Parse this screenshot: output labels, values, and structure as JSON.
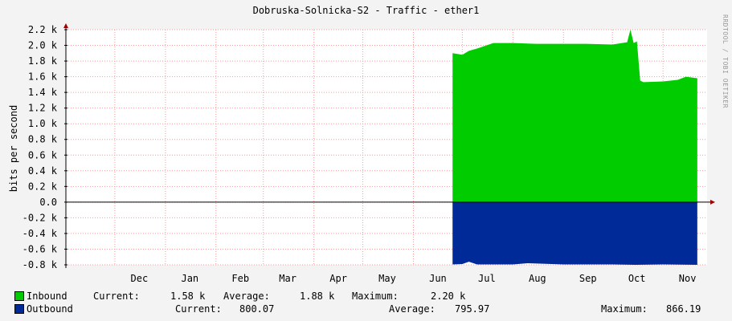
{
  "title": "Dobruska-Solnicka-S2 - Traffic - ether1",
  "watermark": "RRDTOOL / TOBI OETIKER",
  "colors": {
    "inbound": "#00cc00",
    "outbound": "#002a97",
    "grid": "#ff9999",
    "background": "#f3f3f3"
  },
  "chart_data": {
    "type": "area",
    "title": "Dobruska-Solnicka-S2 - Traffic - ether1",
    "ylabel": "bits per second",
    "ylim": [
      -0.8,
      2.2
    ],
    "y_unit": "k",
    "y_ticks": [
      "2.2 k",
      "2.0 k",
      "1.8 k",
      "1.6 k",
      "1.4 k",
      "1.2 k",
      "1.0 k",
      "0.8 k",
      "0.6 k",
      "0.4 k",
      "0.2 k",
      "0.0",
      "-0.2 k",
      "-0.4 k",
      "-0.6 k",
      "-0.8 k"
    ],
    "x_ticks": [
      "Dec",
      "Jan",
      "Feb",
      "Mar",
      "Apr",
      "May",
      "Jun",
      "Jul",
      "Aug",
      "Sep",
      "Oct",
      "Nov"
    ],
    "grid": true,
    "series": [
      {
        "name": "Inbound",
        "color": "#00cc00",
        "x": [
          "Jun 25",
          "Jul 1",
          "Jul 5",
          "Jul 10",
          "Jul 20",
          "Aug 1",
          "Aug 15",
          "Sep 1",
          "Sep 15",
          "Oct 1",
          "Oct 10",
          "Oct 12",
          "Oct 14",
          "Oct 16",
          "Oct 18",
          "Oct 20",
          "Nov 1",
          "Nov 10",
          "Nov 15",
          "Nov 22"
        ],
        "values": [
          1.9,
          1.88,
          1.93,
          1.96,
          2.03,
          2.03,
          2.02,
          2.02,
          2.02,
          2.01,
          2.04,
          2.2,
          2.03,
          2.05,
          1.55,
          1.53,
          1.54,
          1.56,
          1.6,
          1.58
        ],
        "legend": {
          "current": "1.58 k",
          "average": "1.88 k",
          "maximum": "2.20 k"
        }
      },
      {
        "name": "Outbound",
        "color": "#002a97",
        "x": [
          "Jun 25",
          "Jul 1",
          "Jul 5",
          "Jul 10",
          "Aug 1",
          "Aug 10",
          "Sep 1",
          "Oct 1",
          "Oct 15",
          "Nov 1",
          "Nov 22"
        ],
        "values": [
          -0.795,
          -0.79,
          -0.76,
          -0.795,
          -0.795,
          -0.78,
          -0.795,
          -0.795,
          -0.8,
          -0.795,
          -0.8
        ],
        "legend": {
          "current": "800.07",
          "average": "795.97",
          "maximum": "866.19"
        }
      }
    ]
  },
  "legend": {
    "inbound": {
      "name": "Inbound",
      "current_label": "Current:",
      "current": "1.58 k",
      "average_label": "Average:",
      "average": "1.88 k",
      "maximum_label": "Maximum:",
      "maximum": "2.20 k"
    },
    "outbound": {
      "name": "Outbound",
      "current_label": "Current:",
      "current": "800.07",
      "average_label": "Average:",
      "average": "795.97",
      "maximum_label": "Maximum:",
      "maximum": "866.19"
    }
  }
}
